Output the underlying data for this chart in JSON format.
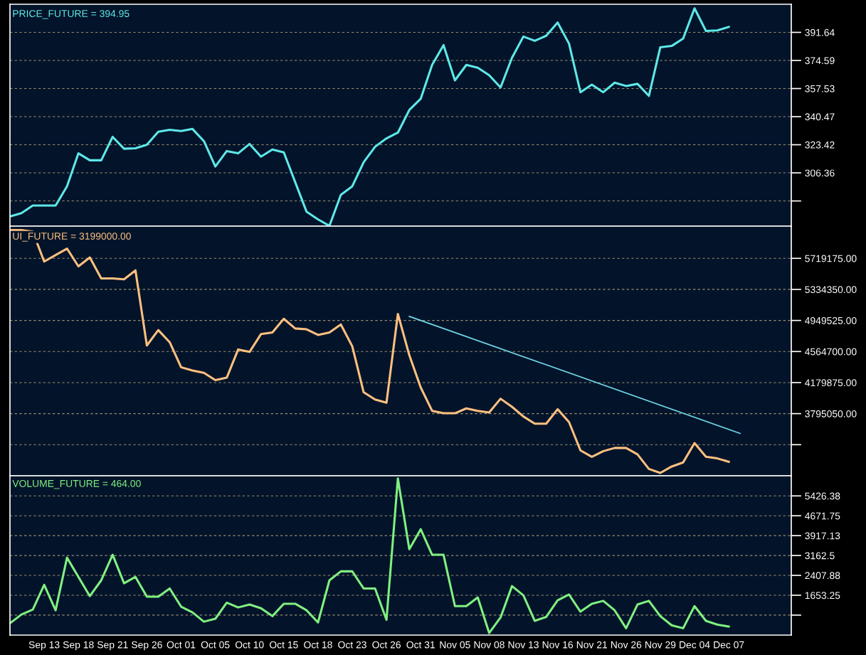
{
  "chart_data": [
    {
      "type": "line",
      "annotations": [
        "PRICE_FUTURE = 394.95"
      ],
      "tick_labels": "y",
      "grid": "y",
      "ylim": [
        274,
        408.7
      ],
      "yticks": [
        {
          "value": 289.3,
          "label": null
        },
        306.36,
        323.42,
        340.47,
        357.53,
        374.59,
        391.64
      ],
      "categories": [
        null,
        null,
        null,
        null,
        null,
        null,
        null,
        null,
        null,
        null,
        null,
        null,
        null,
        null,
        null,
        null,
        null,
        null,
        null,
        null,
        null,
        null,
        null,
        null,
        null,
        null,
        null,
        null,
        null,
        null,
        null,
        null,
        null,
        null,
        null,
        null,
        null,
        null,
        null,
        null,
        null,
        null,
        null,
        null,
        null,
        null,
        null,
        null,
        null,
        null,
        null,
        null,
        null,
        null,
        null,
        null,
        null,
        null,
        null,
        null,
        null,
        null,
        null,
        null,
        null
      ],
      "series": [
        {
          "color": "#5ee8e8",
          "values": [
            279.9,
            281.9,
            286.5,
            286.5,
            286.5,
            298.2,
            318.2,
            314.0,
            314.0,
            328.2,
            321.0,
            321.3,
            323.4,
            331.3,
            332.5,
            331.7,
            333.0,
            325.6,
            310.2,
            319.6,
            318.2,
            323.9,
            316.2,
            320.5,
            318.8,
            300.7,
            282.7,
            278.1,
            274.2,
            293.0,
            298.2,
            312.8,
            322.2,
            327.3,
            330.8,
            344.5,
            351.3,
            371.9,
            383.9,
            362.5,
            371.9,
            370.2,
            365.6,
            358.2,
            376.2,
            389.1,
            386.5,
            389.6,
            397.6,
            384.8,
            355.3,
            359.9,
            355.3,
            361.1,
            359.1,
            360.4,
            353.1,
            382.6,
            383.4,
            387.9,
            406.2,
            392.5,
            392.8,
            394.95,
            null
          ]
        }
      ]
    },
    {
      "type": "line",
      "annotations": [
        "UI_FUTURE = 3199000.00"
      ],
      "tick_labels": "y",
      "grid": "y",
      "ylim": [
        3025000,
        6118000
      ],
      "yticks": [
        {
          "value": 3410225,
          "label": null
        },
        {
          "value": 3795050,
          "label": "3795050.00"
        },
        {
          "value": 4179875,
          "label": "4179875.00"
        },
        {
          "value": 4564700,
          "label": "4564700.00"
        },
        {
          "value": 4949525,
          "label": "4949525.00"
        },
        {
          "value": 5334350,
          "label": "5334350.00"
        },
        {
          "value": 5719175,
          "label": "5719175.00"
        }
      ],
      "categories": [
        null,
        null,
        null,
        null,
        null,
        null,
        null,
        null,
        null,
        null,
        null,
        null,
        null,
        null,
        null,
        null,
        null,
        null,
        null,
        null,
        null,
        null,
        null,
        null,
        null,
        null,
        null,
        null,
        null,
        null,
        null,
        null,
        null,
        null,
        null,
        null,
        null,
        null,
        null,
        null,
        null,
        null,
        null,
        null,
        null,
        null,
        null,
        null,
        null,
        null,
        null,
        null,
        null,
        null,
        null,
        null,
        null,
        null,
        null,
        null,
        null,
        null,
        null,
        null,
        null
      ],
      "series": [
        {
          "color": "#ffc080",
          "values": [
            6070000,
            6070000,
            6050000,
            5680000,
            5760000,
            5840000,
            5620000,
            5730000,
            5470000,
            5470000,
            5460000,
            5570000,
            4640000,
            4830000,
            4680000,
            4370000,
            4330000,
            4300000,
            4210000,
            4240000,
            4590000,
            4560000,
            4780000,
            4800000,
            4970000,
            4850000,
            4840000,
            4770000,
            4800000,
            4900000,
            4630000,
            4060000,
            3970000,
            3930000,
            5030000,
            4520000,
            4120000,
            3830000,
            3800000,
            3800000,
            3860000,
            3830000,
            3810000,
            3980000,
            3880000,
            3760000,
            3670000,
            3670000,
            3850000,
            3690000,
            3340000,
            3260000,
            3330000,
            3370000,
            3370000,
            3290000,
            3110000,
            3060000,
            3140000,
            3190000,
            3430000,
            3260000,
            3240000,
            3199000,
            null
          ]
        },
        {
          "color": "#70d8e8",
          "values": [
            null,
            null,
            null,
            null,
            null,
            null,
            null,
            null,
            null,
            null,
            null,
            null,
            null,
            null,
            null,
            null,
            null,
            null,
            null,
            null,
            null,
            null,
            null,
            null,
            null,
            null,
            null,
            null,
            null,
            null,
            null,
            null,
            null,
            null,
            null,
            5000000,
            null,
            null,
            null,
            null,
            null,
            null,
            null,
            null,
            null,
            null,
            null,
            null,
            null,
            null,
            null,
            null,
            null,
            null,
            null,
            null,
            null,
            null,
            null,
            null,
            null,
            null,
            null,
            null,
            3550000
          ]
        }
      ]
    },
    {
      "type": "line",
      "annotations": [
        "VOLUME_FUTURE = 464.00"
      ],
      "grid": "y",
      "ylim": [
        140,
        6190
      ],
      "yticks": [
        {
          "value": 898.6,
          "label": null
        },
        1653.25,
        2407.88,
        3162.5,
        3917.13,
        4671.75,
        5426.38
      ],
      "categories": [
        null,
        null,
        null,
        "Sep 13",
        null,
        null,
        "Sep 18",
        null,
        null,
        "Sep 21",
        null,
        null,
        "Sep 26",
        null,
        null,
        "Oct 01",
        null,
        null,
        "Oct 05",
        null,
        null,
        "Oct 10",
        null,
        null,
        "Oct 15",
        null,
        null,
        "Oct 18",
        null,
        null,
        "Oct 23",
        null,
        null,
        "Oct 26",
        null,
        null,
        "Oct 31",
        null,
        null,
        "Nov 05",
        null,
        null,
        "Nov 08",
        null,
        null,
        "Nov 13",
        null,
        null,
        "Nov 16",
        null,
        null,
        "Nov 21",
        null,
        null,
        "Nov 26",
        null,
        null,
        "Nov 29",
        null,
        null,
        "Dec 04",
        null,
        null,
        "Dec 07",
        null
      ],
      "series": [
        {
          "color": "#80f080",
          "values": [
            590,
            920,
            1110,
            2050,
            1080,
            3080,
            2350,
            1620,
            2220,
            3190,
            2110,
            2350,
            1600,
            1600,
            1910,
            1220,
            1000,
            650,
            760,
            1370,
            1190,
            1300,
            1160,
            860,
            1330,
            1330,
            1080,
            620,
            2220,
            2560,
            2560,
            1910,
            1910,
            720,
            6090,
            3400,
            4160,
            3190,
            3190,
            1240,
            1240,
            1570,
            220,
            810,
            2000,
            1650,
            680,
            830,
            1460,
            1680,
            1030,
            1330,
            1440,
            1080,
            400,
            1300,
            1440,
            860,
            510,
            400,
            1240,
            680,
            540,
            464,
            null
          ]
        }
      ]
    }
  ]
}
